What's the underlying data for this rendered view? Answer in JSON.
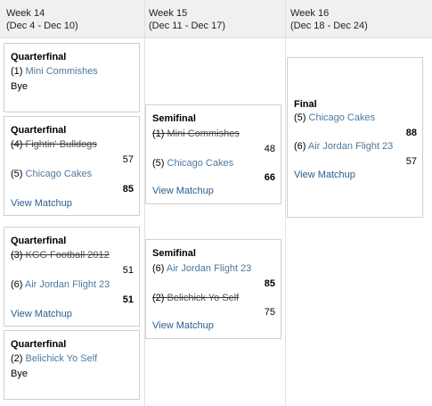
{
  "columns": [
    {
      "week": "Week 14",
      "range": "(Dec 4 - Dec 10)"
    },
    {
      "week": "Week 15",
      "range": "(Dec 11 - Dec 17)"
    },
    {
      "week": "Week 16",
      "range": "(Dec 18 - Dec 24)"
    }
  ],
  "view_matchup_label": "View Matchup",
  "bye_label": "Bye",
  "week14": {
    "qf1": {
      "title": "Quarterfinal",
      "team": {
        "seed": "(1)",
        "name": "Mini Commishes"
      }
    },
    "qf2": {
      "title": "Quarterfinal",
      "team_a": {
        "seed": "(4)",
        "name": "Fightin' Bulldogs",
        "score": "57"
      },
      "team_b": {
        "seed": "(5)",
        "name": "Chicago Cakes",
        "score": "85"
      }
    },
    "qf3": {
      "title": "Quarterfinal",
      "team_a": {
        "seed": "(3)",
        "name": "KGG Football 2012",
        "score": "51"
      },
      "team_b": {
        "seed": "(6)",
        "name": "Air Jordan Flight 23",
        "score": "51"
      }
    },
    "qf4": {
      "title": "Quarterfinal",
      "team": {
        "seed": "(2)",
        "name": "Belichick Yo Self"
      }
    }
  },
  "week15": {
    "sf1": {
      "title": "Semifinal",
      "team_a": {
        "seed": "(1)",
        "name": "Mini Commishes",
        "score": "48"
      },
      "team_b": {
        "seed": "(5)",
        "name": "Chicago Cakes",
        "score": "66"
      }
    },
    "sf2": {
      "title": "Semifinal",
      "team_a": {
        "seed": "(6)",
        "name": "Air Jordan Flight 23",
        "score": "85"
      },
      "team_b": {
        "seed": "(2)",
        "name": "Belichick Yo Self",
        "score": "75"
      }
    }
  },
  "week16": {
    "final": {
      "title": "Final",
      "team_a": {
        "seed": "(5)",
        "name": "Chicago Cakes",
        "score": "88"
      },
      "team_b": {
        "seed": "(6)",
        "name": "Air Jordan Flight 23",
        "score": "57"
      }
    }
  },
  "colors": {
    "link": "#4d7aa0",
    "matchup_link": "#2b5d8c",
    "header_bg": "#f0f0f0",
    "border": "#cfcfcf"
  }
}
